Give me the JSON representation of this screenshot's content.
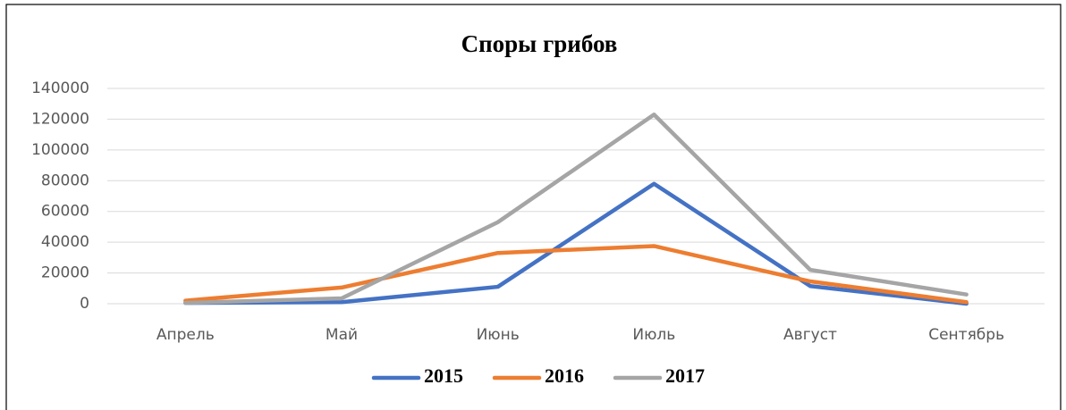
{
  "chart_data": {
    "type": "line",
    "title": "Споры грибов",
    "categories": [
      "Апрель",
      "Май",
      "Июнь",
      "Июль",
      "Август",
      "Сентябрь"
    ],
    "series": [
      {
        "name": "2015",
        "color": "#4472c4",
        "values": [
          500,
          1000,
          11000,
          78000,
          11500,
          0
        ]
      },
      {
        "name": "2016",
        "color": "#ed7d31",
        "values": [
          2000,
          10500,
          33000,
          37500,
          14500,
          1000
        ]
      },
      {
        "name": "2017",
        "color": "#a5a5a5",
        "values": [
          500,
          3500,
          53000,
          123000,
          22000,
          6000
        ]
      }
    ],
    "ylim": [
      0,
      140000
    ],
    "yticks": [
      0,
      20000,
      40000,
      60000,
      80000,
      100000,
      120000,
      140000
    ],
    "grid": true,
    "legend": "bottom"
  }
}
